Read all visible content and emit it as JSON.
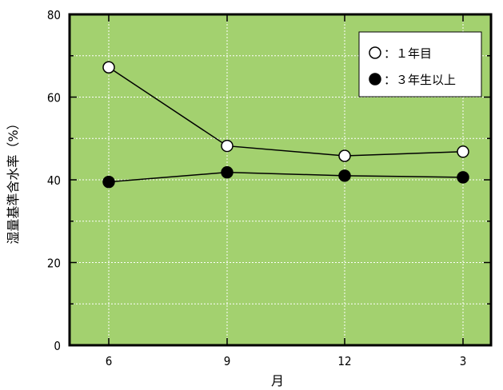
{
  "chart_data": {
    "type": "line",
    "categories": [
      "6",
      "9",
      "12",
      "3"
    ],
    "xlabel": "月",
    "ylabel": "湿量基準含水率（%）",
    "ylim": [
      0,
      80
    ],
    "yticks": [
      0,
      20,
      40,
      60,
      80
    ],
    "grid": true,
    "legend_position": "top-right",
    "background_color": "#a3d16f",
    "series": [
      {
        "name": "：１年目",
        "marker": "open-circle",
        "values": [
          67.2,
          48.2,
          45.8,
          46.8
        ]
      },
      {
        "name": "：３年生以上",
        "marker": "filled-circle",
        "values": [
          39.5,
          41.8,
          41.0,
          40.6
        ]
      }
    ]
  }
}
